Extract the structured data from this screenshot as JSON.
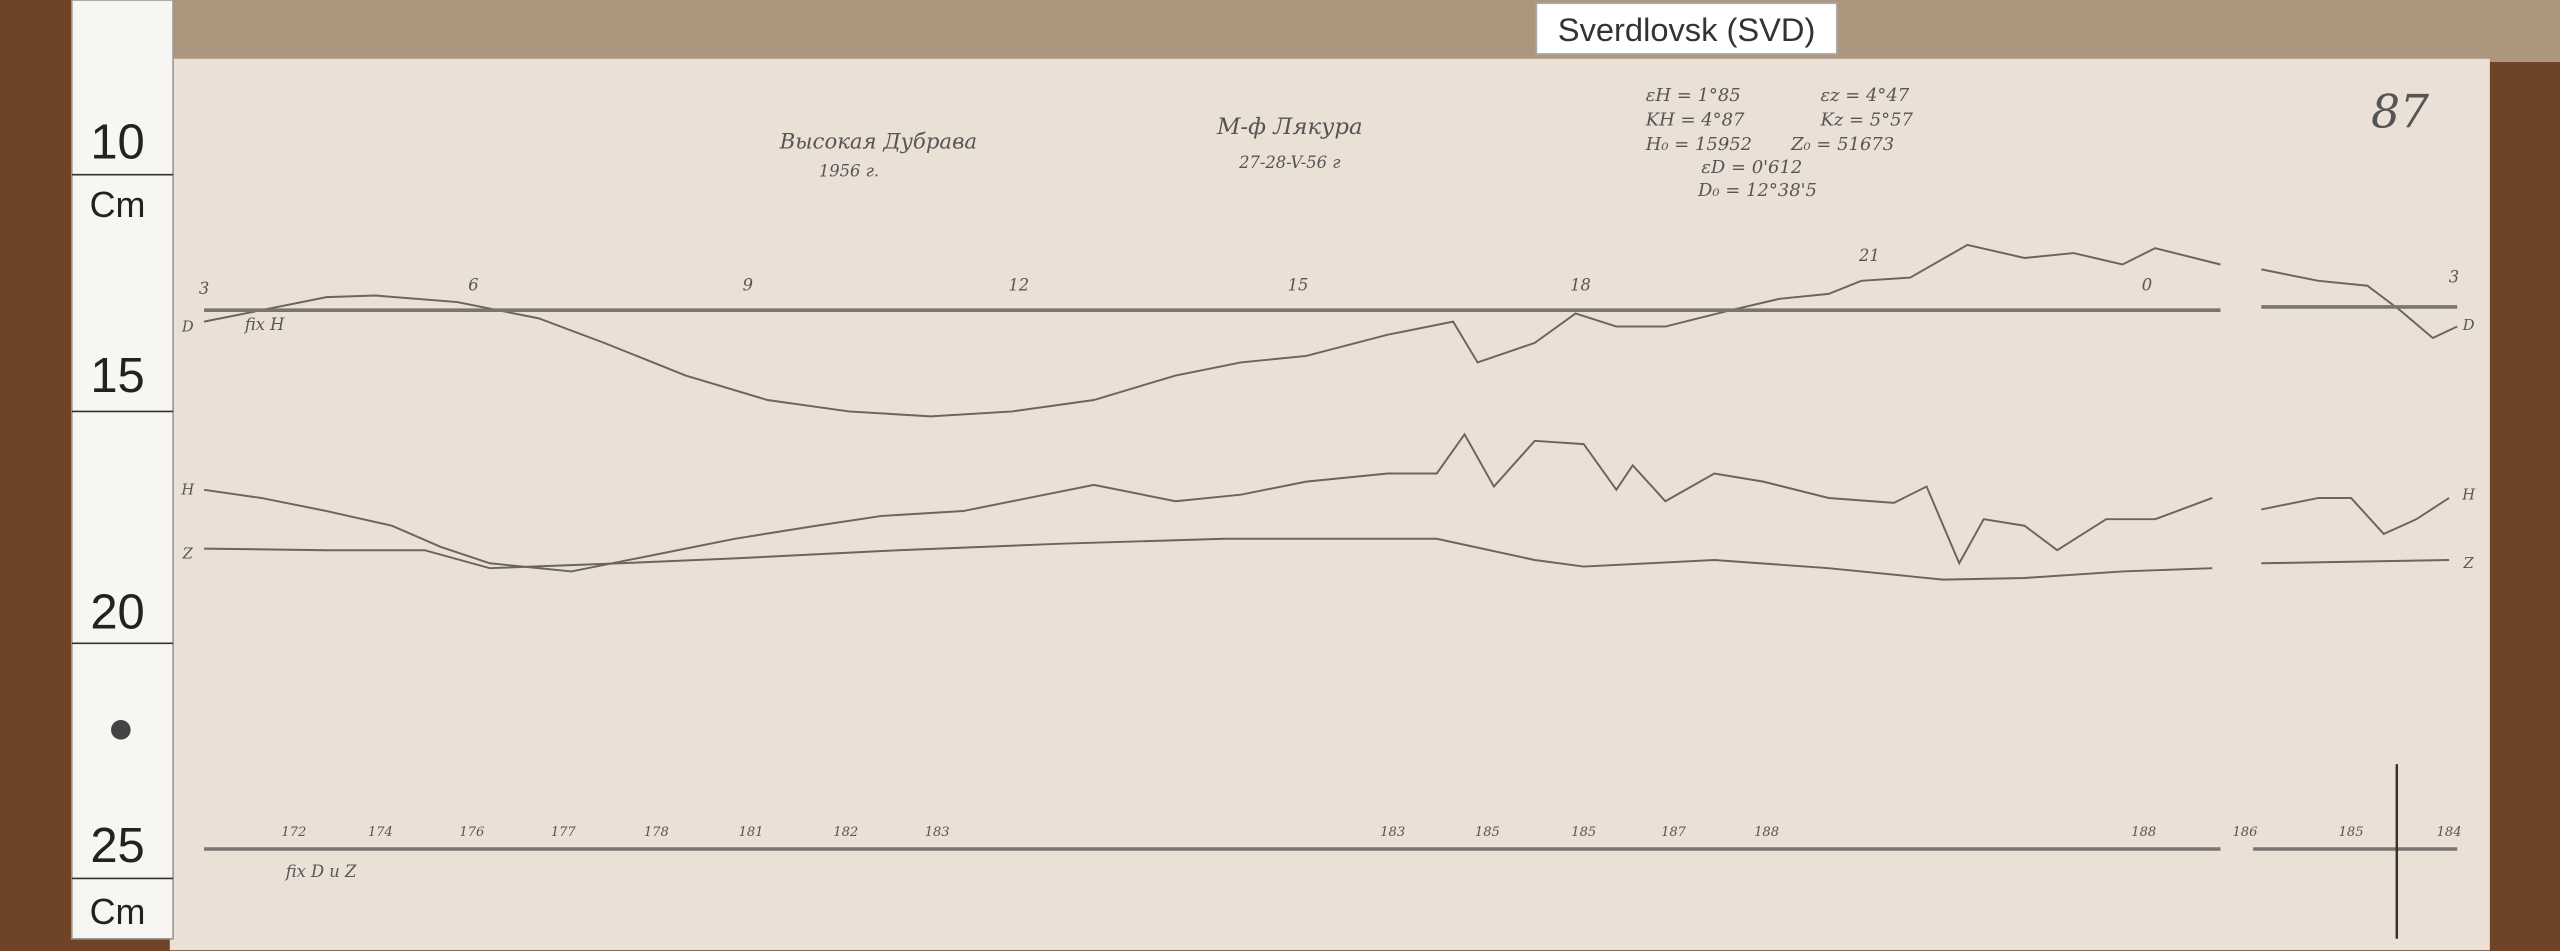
{
  "label": "Sverdlovsk (SVD)",
  "ruler": {
    "marks": [
      "10",
      "15",
      "20",
      "25"
    ],
    "units": [
      "Cm",
      "Cm"
    ]
  },
  "record": {
    "sheet_number": "87",
    "station": "Высокая Дубрава",
    "year": "1956 г.",
    "instrument": "М-ф Лякура",
    "date": "27-28-V-56 г",
    "constants": [
      "εH = 1°85",
      "εz = 4°47",
      "KH = 4°87",
      "Kz = 5°57",
      "H₀ = 15952",
      "Z₀ = 51673",
      "εD = 0'612",
      "D₀ = 12°38'5"
    ],
    "hours": [
      "3",
      "6",
      "9",
      "12",
      "15",
      "18",
      "21",
      "0",
      "3"
    ],
    "trace_labels": [
      "D",
      "H",
      "Z",
      "D",
      "H",
      "Z"
    ],
    "fix_top": "fix H",
    "fix_bottom": "fix D и Z",
    "bottom_marks": [
      "172",
      "174",
      "176",
      "177",
      "178",
      "181",
      "182",
      "183",
      "183",
      "185",
      "185",
      "187",
      "188",
      "188",
      "186",
      "185",
      "184"
    ]
  }
}
